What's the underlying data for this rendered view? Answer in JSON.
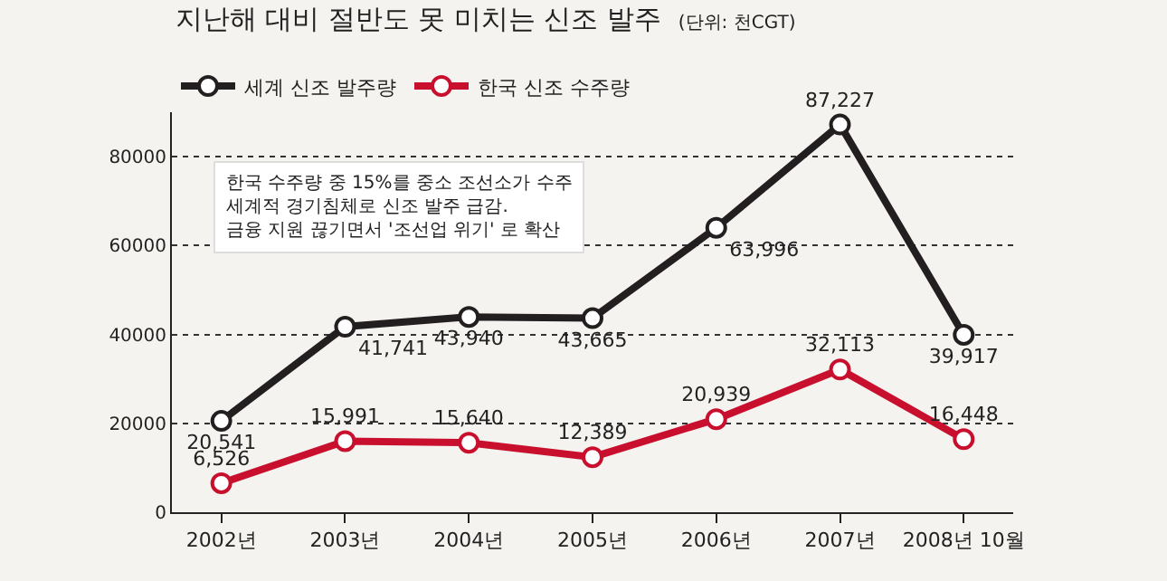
{
  "chart_data": {
    "type": "line",
    "title": "지난해 대비 절반도 못 미치는 신조 발주",
    "subtitle": "(단위: 천CGT)",
    "categories": [
      "2002년",
      "2003년",
      "2004년",
      "2005년",
      "2006년",
      "2007년",
      "2008년 10월"
    ],
    "series": [
      {
        "name": "세계 신조 발주량",
        "color": "#231f20",
        "values": [
          20541,
          41741,
          43940,
          43665,
          63996,
          87227,
          39917
        ],
        "value_labels": [
          "20,541",
          "41,741",
          "43,940",
          "43,665",
          "63,996",
          "87,227",
          "39,917"
        ]
      },
      {
        "name": "한국 신조 수주량",
        "color": "#c8102e",
        "values": [
          6526,
          15991,
          15640,
          12389,
          20939,
          32113,
          16448
        ],
        "value_labels": [
          "6,526",
          "15,991",
          "15,640",
          "12,389",
          "20,939",
          "32,113",
          "16,448"
        ]
      }
    ],
    "ylim": [
      0,
      90000
    ],
    "yticks": [
      0,
      20000,
      40000,
      60000,
      80000
    ],
    "grid": "y",
    "legend": "top left",
    "marker": "circle",
    "line_style": "solid",
    "annotations": [
      "한국 수주량 중 15%를 중소 조선소가 수주\n세계적 경기침체로 신조 발주 급감.\n금융 지원 끊기면서 '조선업 위기' 로 확산"
    ]
  }
}
